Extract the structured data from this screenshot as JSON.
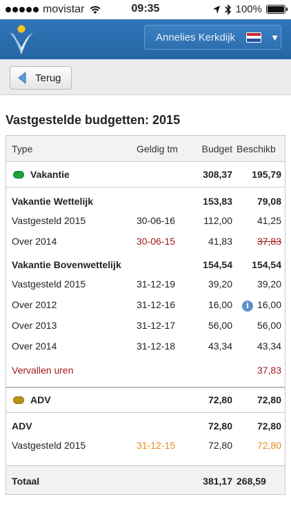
{
  "status_bar": {
    "carrier": "movistar",
    "time": "09:35",
    "battery": "100%",
    "icons": [
      "signal-dots-icon",
      "wifi-icon",
      "location-arrow-icon",
      "bluetooth-icon",
      "battery-icon"
    ]
  },
  "header": {
    "user_name": "Annelies Kerkdijk",
    "flag": "nl-flag-icon",
    "caret": "▼"
  },
  "toolbar": {
    "back_label": "Terug"
  },
  "page_title": "Vastgestelde budgetten: 2015",
  "table": {
    "headers": {
      "type": "Type",
      "valid_until": "Geldig tm",
      "budget": "Budget",
      "available": "Beschikb"
    },
    "group_vakantie": {
      "label": "Vakantie",
      "budget": "308,37",
      "available": "195,79",
      "color": "#1aa33a"
    },
    "sub_wettelijk": {
      "label": "Vakantie Wettelijk",
      "budget": "153,83",
      "available": "79,08"
    },
    "rows_wettelijk": [
      {
        "type": "Vastgesteld 2015",
        "valid": "30-06-16",
        "budget": "112,00",
        "available": "41,25"
      },
      {
        "type": "Over 2014",
        "valid": "30-06-15",
        "budget": "41,83",
        "available": "37,83"
      }
    ],
    "sub_bovenwettelijk": {
      "label": "Vakantie Bovenwettelijk",
      "budget": "154,54",
      "available": "154,54"
    },
    "rows_bovenwettelijk": [
      {
        "type": "Vastgesteld 2015",
        "valid": "31-12-19",
        "budget": "39,20",
        "available": "39,20"
      },
      {
        "type": "Over 2012",
        "valid": "31-12-16",
        "budget": "16,00",
        "available": "16,00",
        "info": "i"
      },
      {
        "type": "Over 2013",
        "valid": "31-12-17",
        "budget": "56,00",
        "available": "56,00"
      },
      {
        "type": "Over 2014",
        "valid": "31-12-18",
        "budget": "43,34",
        "available": "43,34"
      }
    ],
    "expired": {
      "label": "Vervallen uren",
      "available": "37,83"
    },
    "group_adv": {
      "label": "ADV",
      "budget": "72,80",
      "available": "72,80",
      "color": "#b89412"
    },
    "sub_adv": {
      "label": "ADV",
      "budget": "72,80",
      "available": "72,80"
    },
    "rows_adv": [
      {
        "type": "Vastgesteld 2015",
        "valid": "31-12-15",
        "budget": "72,80",
        "available": "72,80"
      }
    ],
    "total": {
      "label": "Totaal",
      "budget": "381,17",
      "available": "268,59"
    }
  },
  "colors": {
    "header_blue": "#2766a4",
    "expired_red": "#a01a1a",
    "warning_orange": "#e8891a"
  }
}
